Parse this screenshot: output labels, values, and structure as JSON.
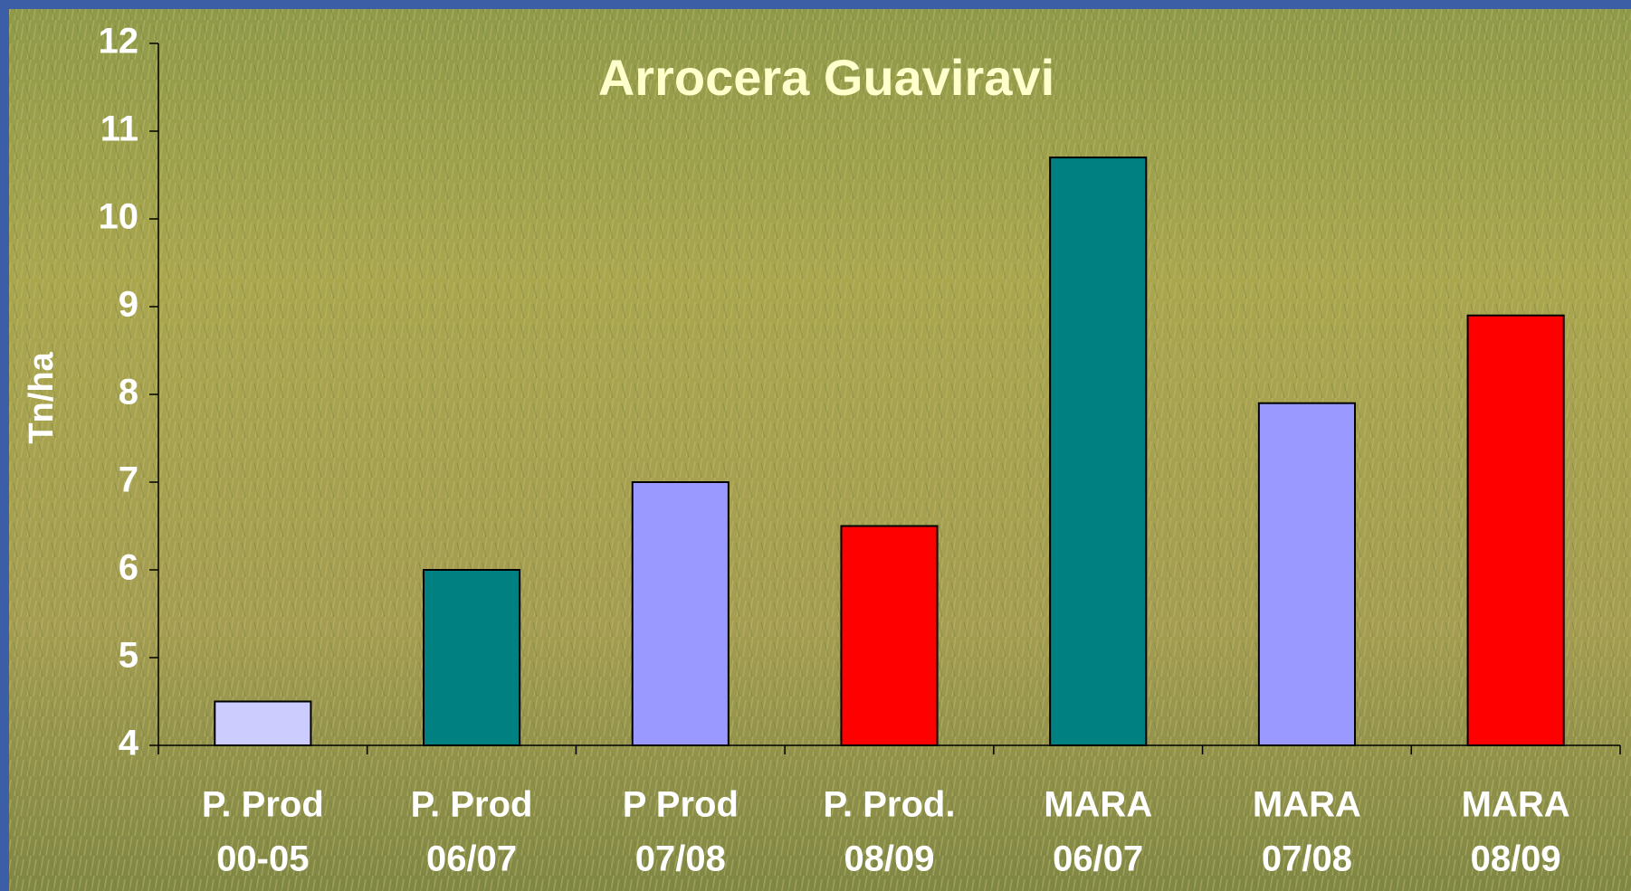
{
  "chart_data": {
    "type": "bar",
    "title": "Arrocera Guaviravi",
    "y_label": "Tn/ha",
    "categories": [
      [
        "P. Prod",
        "00-05"
      ],
      [
        "P. Prod",
        "06/07"
      ],
      [
        "P Prod",
        "07/08"
      ],
      [
        "P. Prod.",
        "08/09"
      ],
      [
        "MARA",
        "06/07"
      ],
      [
        "MARA",
        "07/08"
      ],
      [
        "MARA",
        "08/09"
      ]
    ],
    "values": [
      4.5,
      6,
      7,
      6.5,
      10.7,
      7.9,
      8.9
    ],
    "colors": [
      "#ccccff",
      "#008080",
      "#9999ff",
      "#ff0000",
      "#008080",
      "#9999ff",
      "#ff0000"
    ],
    "ylim": [
      4,
      12
    ],
    "yticks": [
      4,
      5,
      6,
      7,
      8,
      9,
      10,
      11,
      12
    ]
  }
}
